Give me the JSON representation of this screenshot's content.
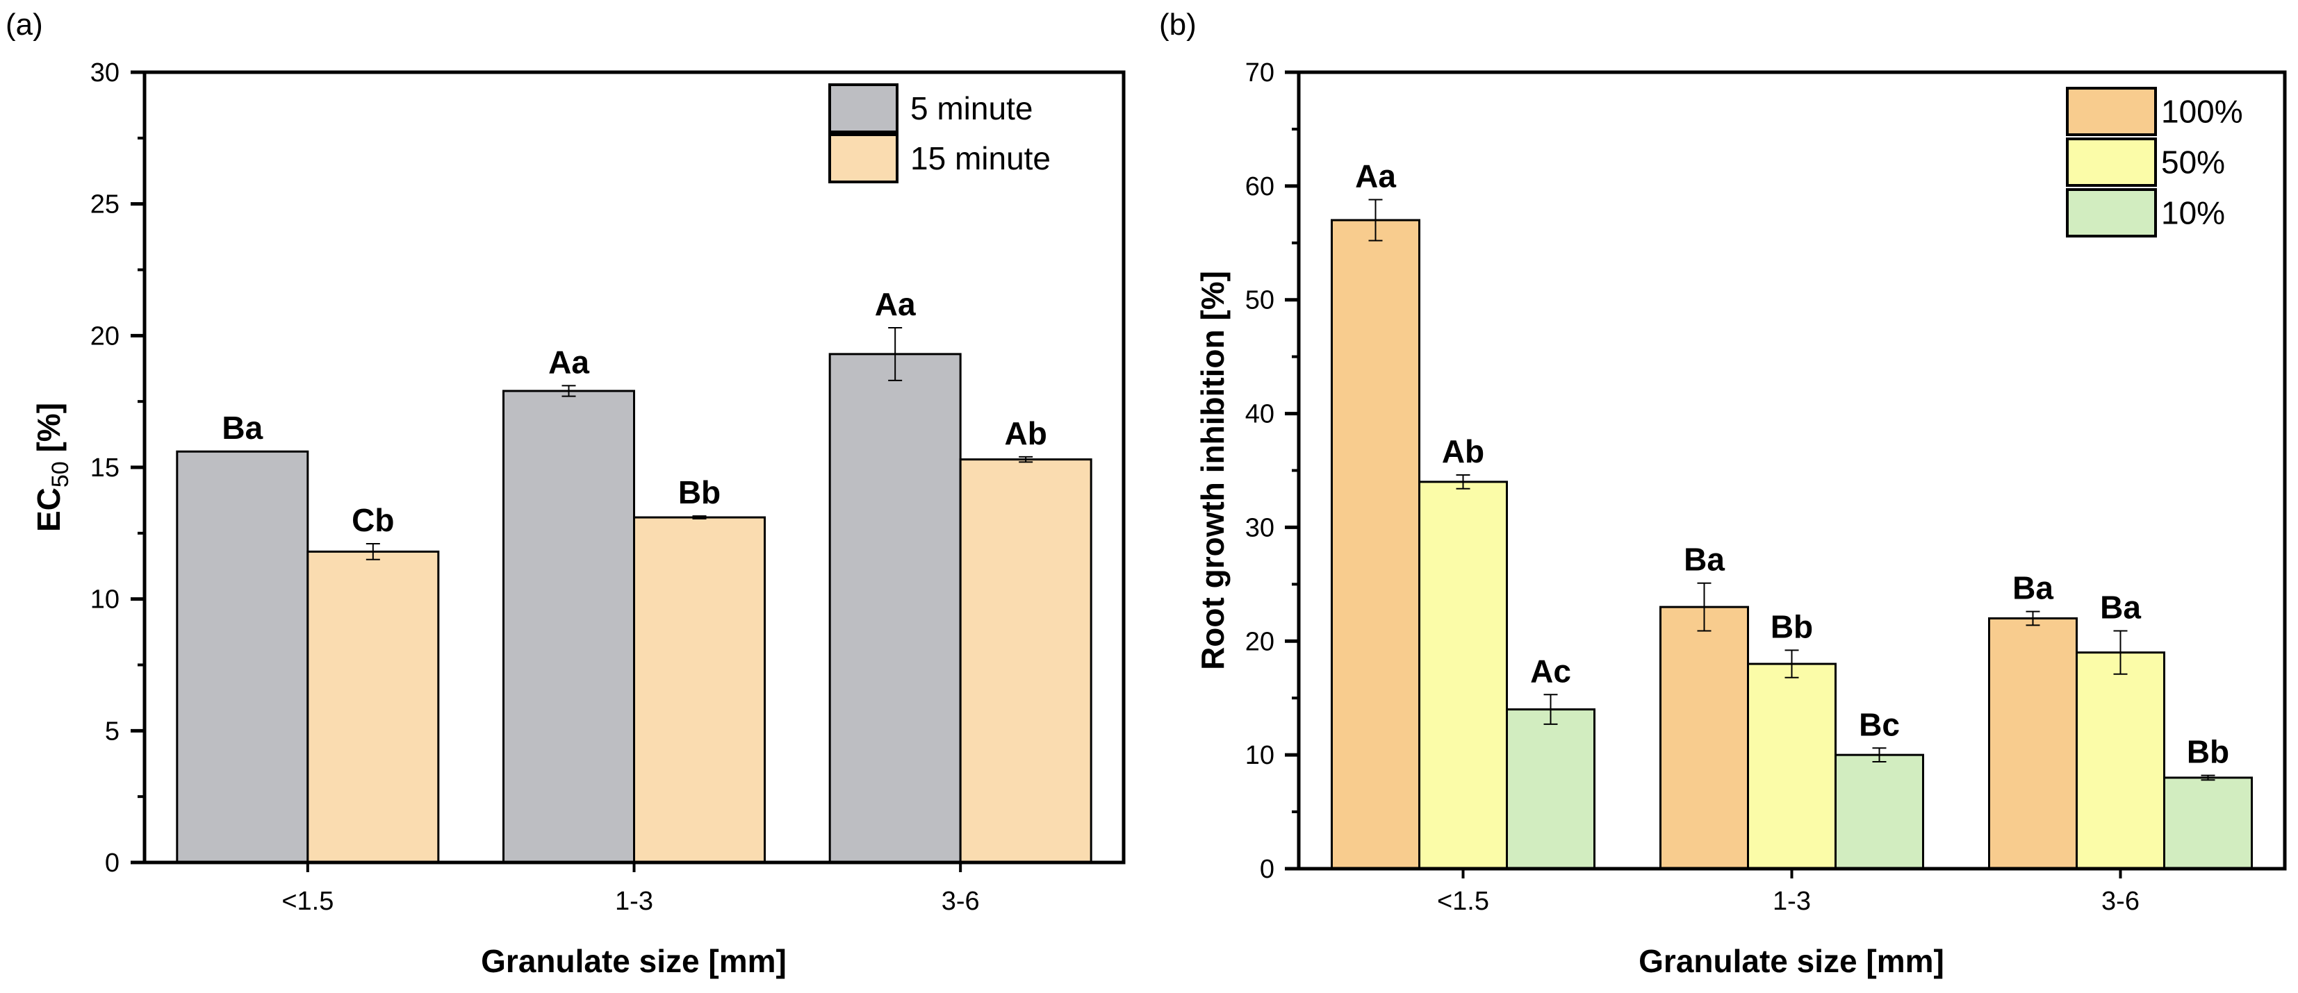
{
  "chart_data": [
    {
      "type": "bar",
      "panel_label": "(a)",
      "xlabel": "Granulate size [mm]",
      "ylabel_parts": {
        "main": "EC",
        "sub": "50",
        "tail": " [%]"
      },
      "categories": [
        "<1.5",
        "1-3",
        "3-6"
      ],
      "ylim": [
        0,
        30
      ],
      "yticks": [
        0,
        5,
        10,
        15,
        20,
        25,
        30
      ],
      "grid": false,
      "legend_position": "top-right",
      "series": [
        {
          "name": "5 minute",
          "color": "#bdbec2",
          "values": [
            15.6,
            17.9,
            19.3
          ],
          "errors": [
            0.0,
            0.2,
            1.0
          ],
          "labels": [
            "Ba",
            "Aa",
            "Aa"
          ]
        },
        {
          "name": "15 minute",
          "color": "#fadcb0",
          "values": [
            11.8,
            13.1,
            15.3
          ],
          "errors": [
            0.3,
            0.05,
            0.1
          ],
          "labels": [
            "Cb",
            "Bb",
            "Ab"
          ]
        }
      ]
    },
    {
      "type": "bar",
      "panel_label": "(b)",
      "xlabel": "Granulate size [mm]",
      "ylabel": "Root growth inhibition [%]",
      "categories": [
        "<1.5",
        "1-3",
        "3-6"
      ],
      "ylim": [
        0,
        70
      ],
      "yticks": [
        0,
        10,
        20,
        30,
        40,
        50,
        60,
        70
      ],
      "grid": false,
      "legend_position": "top-right",
      "series": [
        {
          "name": "100%",
          "color": "#f8cc8e",
          "values": [
            57,
            23,
            22
          ],
          "errors": [
            1.8,
            2.1,
            0.6
          ],
          "labels": [
            "Aa",
            "Ba",
            "Ba"
          ]
        },
        {
          "name": "50%",
          "color": "#fbfca8",
          "values": [
            34,
            18,
            19
          ],
          "errors": [
            0.6,
            1.2,
            1.9
          ],
          "labels": [
            "Ab",
            "Bb",
            "Ba"
          ]
        },
        {
          "name": "10%",
          "color": "#d2edc0",
          "values": [
            14,
            10,
            8
          ],
          "errors": [
            1.3,
            0.6,
            0.2
          ],
          "labels": [
            "Ac",
            "Bc",
            "Bb"
          ]
        }
      ]
    }
  ]
}
